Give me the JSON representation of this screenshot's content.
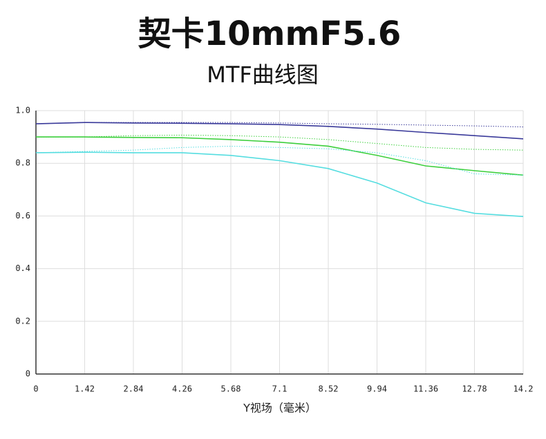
{
  "chart_data": {
    "type": "line",
    "title": "契卡10mmF5.6",
    "subtitle": "MTF曲线图",
    "x_label": "Y视场（毫米）",
    "x": [
      0,
      1.42,
      2.84,
      4.26,
      5.68,
      7.1,
      8.52,
      9.94,
      11.36,
      12.78,
      14.2
    ],
    "xlim": [
      0,
      14.2
    ],
    "xticks": [
      0,
      1.42,
      2.84,
      4.26,
      5.68,
      7.1,
      8.52,
      9.94,
      11.36,
      12.78,
      14.2
    ],
    "ylim": [
      0,
      1
    ],
    "yticks": [
      0,
      0.2,
      0.4,
      0.6,
      0.8,
      {
        "value": 1,
        "label": "1.0"
      }
    ],
    "grid": true,
    "series": [
      {
        "color": "#3a3a9a",
        "style": "solid",
        "values": [
          0.95,
          0.955,
          0.953,
          0.952,
          0.95,
          0.947,
          0.94,
          0.93,
          0.917,
          0.905,
          0.893
        ]
      },
      {
        "color": "#3a3a9a",
        "style": "dotted",
        "values": [
          0.95,
          0.955,
          0.955,
          0.955,
          0.955,
          0.953,
          0.95,
          0.948,
          0.945,
          0.942,
          0.938
        ]
      },
      {
        "color": "#3ccf3c",
        "style": "solid",
        "values": [
          0.9,
          0.9,
          0.898,
          0.897,
          0.89,
          0.88,
          0.865,
          0.83,
          0.79,
          0.772,
          0.755
        ]
      },
      {
        "color": "#3ccf3c",
        "style": "dotted",
        "values": [
          0.9,
          0.9,
          0.905,
          0.907,
          0.905,
          0.9,
          0.89,
          0.875,
          0.86,
          0.853,
          0.85
        ]
      },
      {
        "color": "#55dde0",
        "style": "solid",
        "values": [
          0.84,
          0.842,
          0.84,
          0.84,
          0.83,
          0.81,
          0.78,
          0.725,
          0.65,
          0.61,
          0.598
        ]
      },
      {
        "color": "#55dde0",
        "style": "dotted",
        "values": [
          0.84,
          0.845,
          0.85,
          0.86,
          0.865,
          0.86,
          0.855,
          0.84,
          0.81,
          0.76,
          0.755
        ]
      }
    ]
  }
}
